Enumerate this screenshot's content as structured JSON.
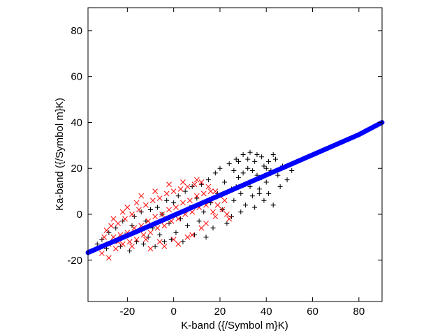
{
  "chart_data": {
    "type": "scatter",
    "title": "",
    "xlabel": "K-band ({/Symbol m}K)",
    "ylabel": "Ka-band ({/Symbol m}K)",
    "xlim": [
      -37,
      90
    ],
    "ylim": [
      -38,
      90
    ],
    "xticks": [
      -20,
      0,
      20,
      40,
      60,
      80
    ],
    "yticks": [
      -20,
      0,
      20,
      40,
      60,
      80
    ],
    "xtick_labels": [
      "-20",
      "0",
      "20",
      "40",
      "60",
      "80"
    ],
    "ytick_labels": [
      "-20",
      "0",
      "20",
      "40",
      "60",
      "80"
    ],
    "grid": false,
    "legend": "none",
    "series": [
      {
        "marker": "plus",
        "color": "#000000",
        "points": [
          [
            -33,
            -13
          ],
          [
            -31,
            -11
          ],
          [
            -29,
            -15
          ],
          [
            -28,
            -8
          ],
          [
            -26,
            -12
          ],
          [
            -25,
            -6
          ],
          [
            -23,
            -14
          ],
          [
            -22,
            -3
          ],
          [
            -21,
            -9
          ],
          [
            -19,
            -16
          ],
          [
            -18,
            -5
          ],
          [
            -17,
            -1
          ],
          [
            -16,
            -12
          ],
          [
            -15,
            -7
          ],
          [
            -14,
            1
          ],
          [
            -13,
            -13
          ],
          [
            -12,
            -3
          ],
          [
            -11,
            -10
          ],
          [
            -10,
            2
          ],
          [
            -9,
            -6
          ],
          [
            -8,
            -14
          ],
          [
            -7,
            3
          ],
          [
            -6,
            -9
          ],
          [
            -5,
            0
          ],
          [
            -4,
            -12
          ],
          [
            -3,
            6
          ],
          [
            -2,
            -4
          ],
          [
            -1,
            -11
          ],
          [
            0,
            5
          ],
          [
            1,
            -8
          ],
          [
            2,
            8
          ],
          [
            3,
            -2
          ],
          [
            4,
            -12
          ],
          [
            5,
            10
          ],
          [
            6,
            -5
          ],
          [
            7,
            3
          ],
          [
            8,
            12
          ],
          [
            9,
            -9
          ],
          [
            10,
            7
          ],
          [
            11,
            -3
          ],
          [
            12,
            13
          ],
          [
            13,
            1
          ],
          [
            14,
            -10
          ],
          [
            15,
            15
          ],
          [
            16,
            5
          ],
          [
            17,
            -6
          ],
          [
            18,
            18
          ],
          [
            19,
            9
          ],
          [
            20,
            20
          ],
          [
            21,
            2
          ],
          [
            22,
            14
          ],
          [
            23,
            -4
          ],
          [
            24,
            22
          ],
          [
            25,
            11
          ],
          [
            26,
            6
          ],
          [
            27,
            24
          ],
          [
            28,
            16
          ],
          [
            29,
            1
          ],
          [
            30,
            26
          ],
          [
            31,
            13
          ],
          [
            32,
            20
          ],
          [
            33,
            27
          ],
          [
            34,
            8
          ],
          [
            35,
            23
          ],
          [
            36,
            17
          ],
          [
            37,
            11
          ],
          [
            38,
            25
          ],
          [
            39,
            21
          ],
          [
            40,
            14
          ],
          [
            41,
            23
          ],
          [
            42,
            19
          ],
          [
            43,
            26
          ],
          [
            45,
            17
          ],
          [
            47,
            21
          ],
          [
            49,
            15
          ],
          [
            51,
            19
          ],
          [
            26,
            19
          ],
          [
            28,
            23
          ],
          [
            30,
            18
          ],
          [
            32,
            24
          ],
          [
            34,
            19
          ],
          [
            36,
            26
          ],
          [
            38,
            16
          ],
          [
            40,
            20
          ],
          [
            44,
            24
          ],
          [
            46,
            12
          ],
          [
            29,
            9
          ],
          [
            31,
            4
          ],
          [
            33,
            12
          ],
          [
            35,
            3
          ],
          [
            37,
            9
          ],
          [
            39,
            6
          ],
          [
            41,
            9
          ],
          [
            43,
            4
          ],
          [
            25,
            -1
          ],
          [
            27,
            12
          ]
        ]
      },
      {
        "marker": "cross",
        "color": "#ff0000",
        "points": [
          [
            -31,
            -17
          ],
          [
            -30,
            -10
          ],
          [
            -29,
            -7
          ],
          [
            -28,
            -13
          ],
          [
            -27,
            -5
          ],
          [
            -26,
            -10
          ],
          [
            -25,
            -15
          ],
          [
            -24,
            -4
          ],
          [
            -23,
            -9
          ],
          [
            -22,
            -13
          ],
          [
            -21,
            -2
          ],
          [
            -20,
            -8
          ],
          [
            -19,
            -12
          ],
          [
            -18,
            0
          ],
          [
            -17,
            -6
          ],
          [
            -16,
            -11
          ],
          [
            -15,
            2
          ],
          [
            -14,
            -5
          ],
          [
            -13,
            -9
          ],
          [
            -12,
            4
          ],
          [
            -11,
            -3
          ],
          [
            -10,
            -8
          ],
          [
            -9,
            6
          ],
          [
            -8,
            -1
          ],
          [
            -7,
            -6
          ],
          [
            -6,
            7
          ],
          [
            -5,
            0
          ],
          [
            -4,
            -5
          ],
          [
            -3,
            9
          ],
          [
            -2,
            2
          ],
          [
            -1,
            -3
          ],
          [
            0,
            10
          ],
          [
            1,
            3
          ],
          [
            2,
            -2
          ],
          [
            3,
            11
          ],
          [
            4,
            5
          ],
          [
            5,
            0
          ],
          [
            6,
            12
          ],
          [
            7,
            6
          ],
          [
            8,
            1
          ],
          [
            9,
            13
          ],
          [
            10,
            8
          ],
          [
            11,
            3
          ],
          [
            12,
            14
          ],
          [
            13,
            9
          ],
          [
            14,
            4
          ],
          [
            15,
            12
          ],
          [
            16,
            6
          ],
          [
            17,
            1
          ],
          [
            18,
            10
          ],
          [
            19,
            4
          ],
          [
            20,
            8
          ],
          [
            21,
            2
          ],
          [
            22,
            6
          ],
          [
            23,
            0
          ],
          [
            24,
            -2
          ],
          [
            -12,
            -11
          ],
          [
            -6,
            -12
          ],
          [
            0,
            -11
          ],
          [
            6,
            -10
          ],
          [
            12,
            -6
          ],
          [
            -20,
            3
          ],
          [
            -14,
            8
          ],
          [
            -8,
            10
          ],
          [
            -2,
            13
          ],
          [
            4,
            14
          ],
          [
            10,
            15
          ],
          [
            -24,
            -12
          ],
          [
            -18,
            -14
          ],
          [
            -10,
            -15
          ],
          [
            -4,
            -14
          ],
          [
            2,
            -13
          ],
          [
            8,
            -9
          ],
          [
            14,
            -4
          ],
          [
            18,
            -1
          ],
          [
            16,
            10
          ],
          [
            -26,
            -2
          ],
          [
            -22,
            1
          ],
          [
            -16,
            5
          ],
          [
            -28,
            -19
          ]
        ]
      },
      {
        "marker": "dot",
        "color": "#0000ff",
        "points": [
          [
            -37,
            -16.7
          ],
          [
            -30,
            -13.6
          ],
          [
            -20,
            -9.3
          ],
          [
            -10,
            -4.9
          ],
          [
            0,
            -0.5
          ],
          [
            10,
            3.9
          ],
          [
            20,
            8.3
          ],
          [
            30,
            12.7
          ],
          [
            40,
            17.1
          ],
          [
            50,
            21.5
          ],
          [
            60,
            25.9
          ],
          [
            70,
            30.3
          ],
          [
            80,
            34.7
          ],
          [
            90,
            40
          ]
        ]
      }
    ]
  }
}
